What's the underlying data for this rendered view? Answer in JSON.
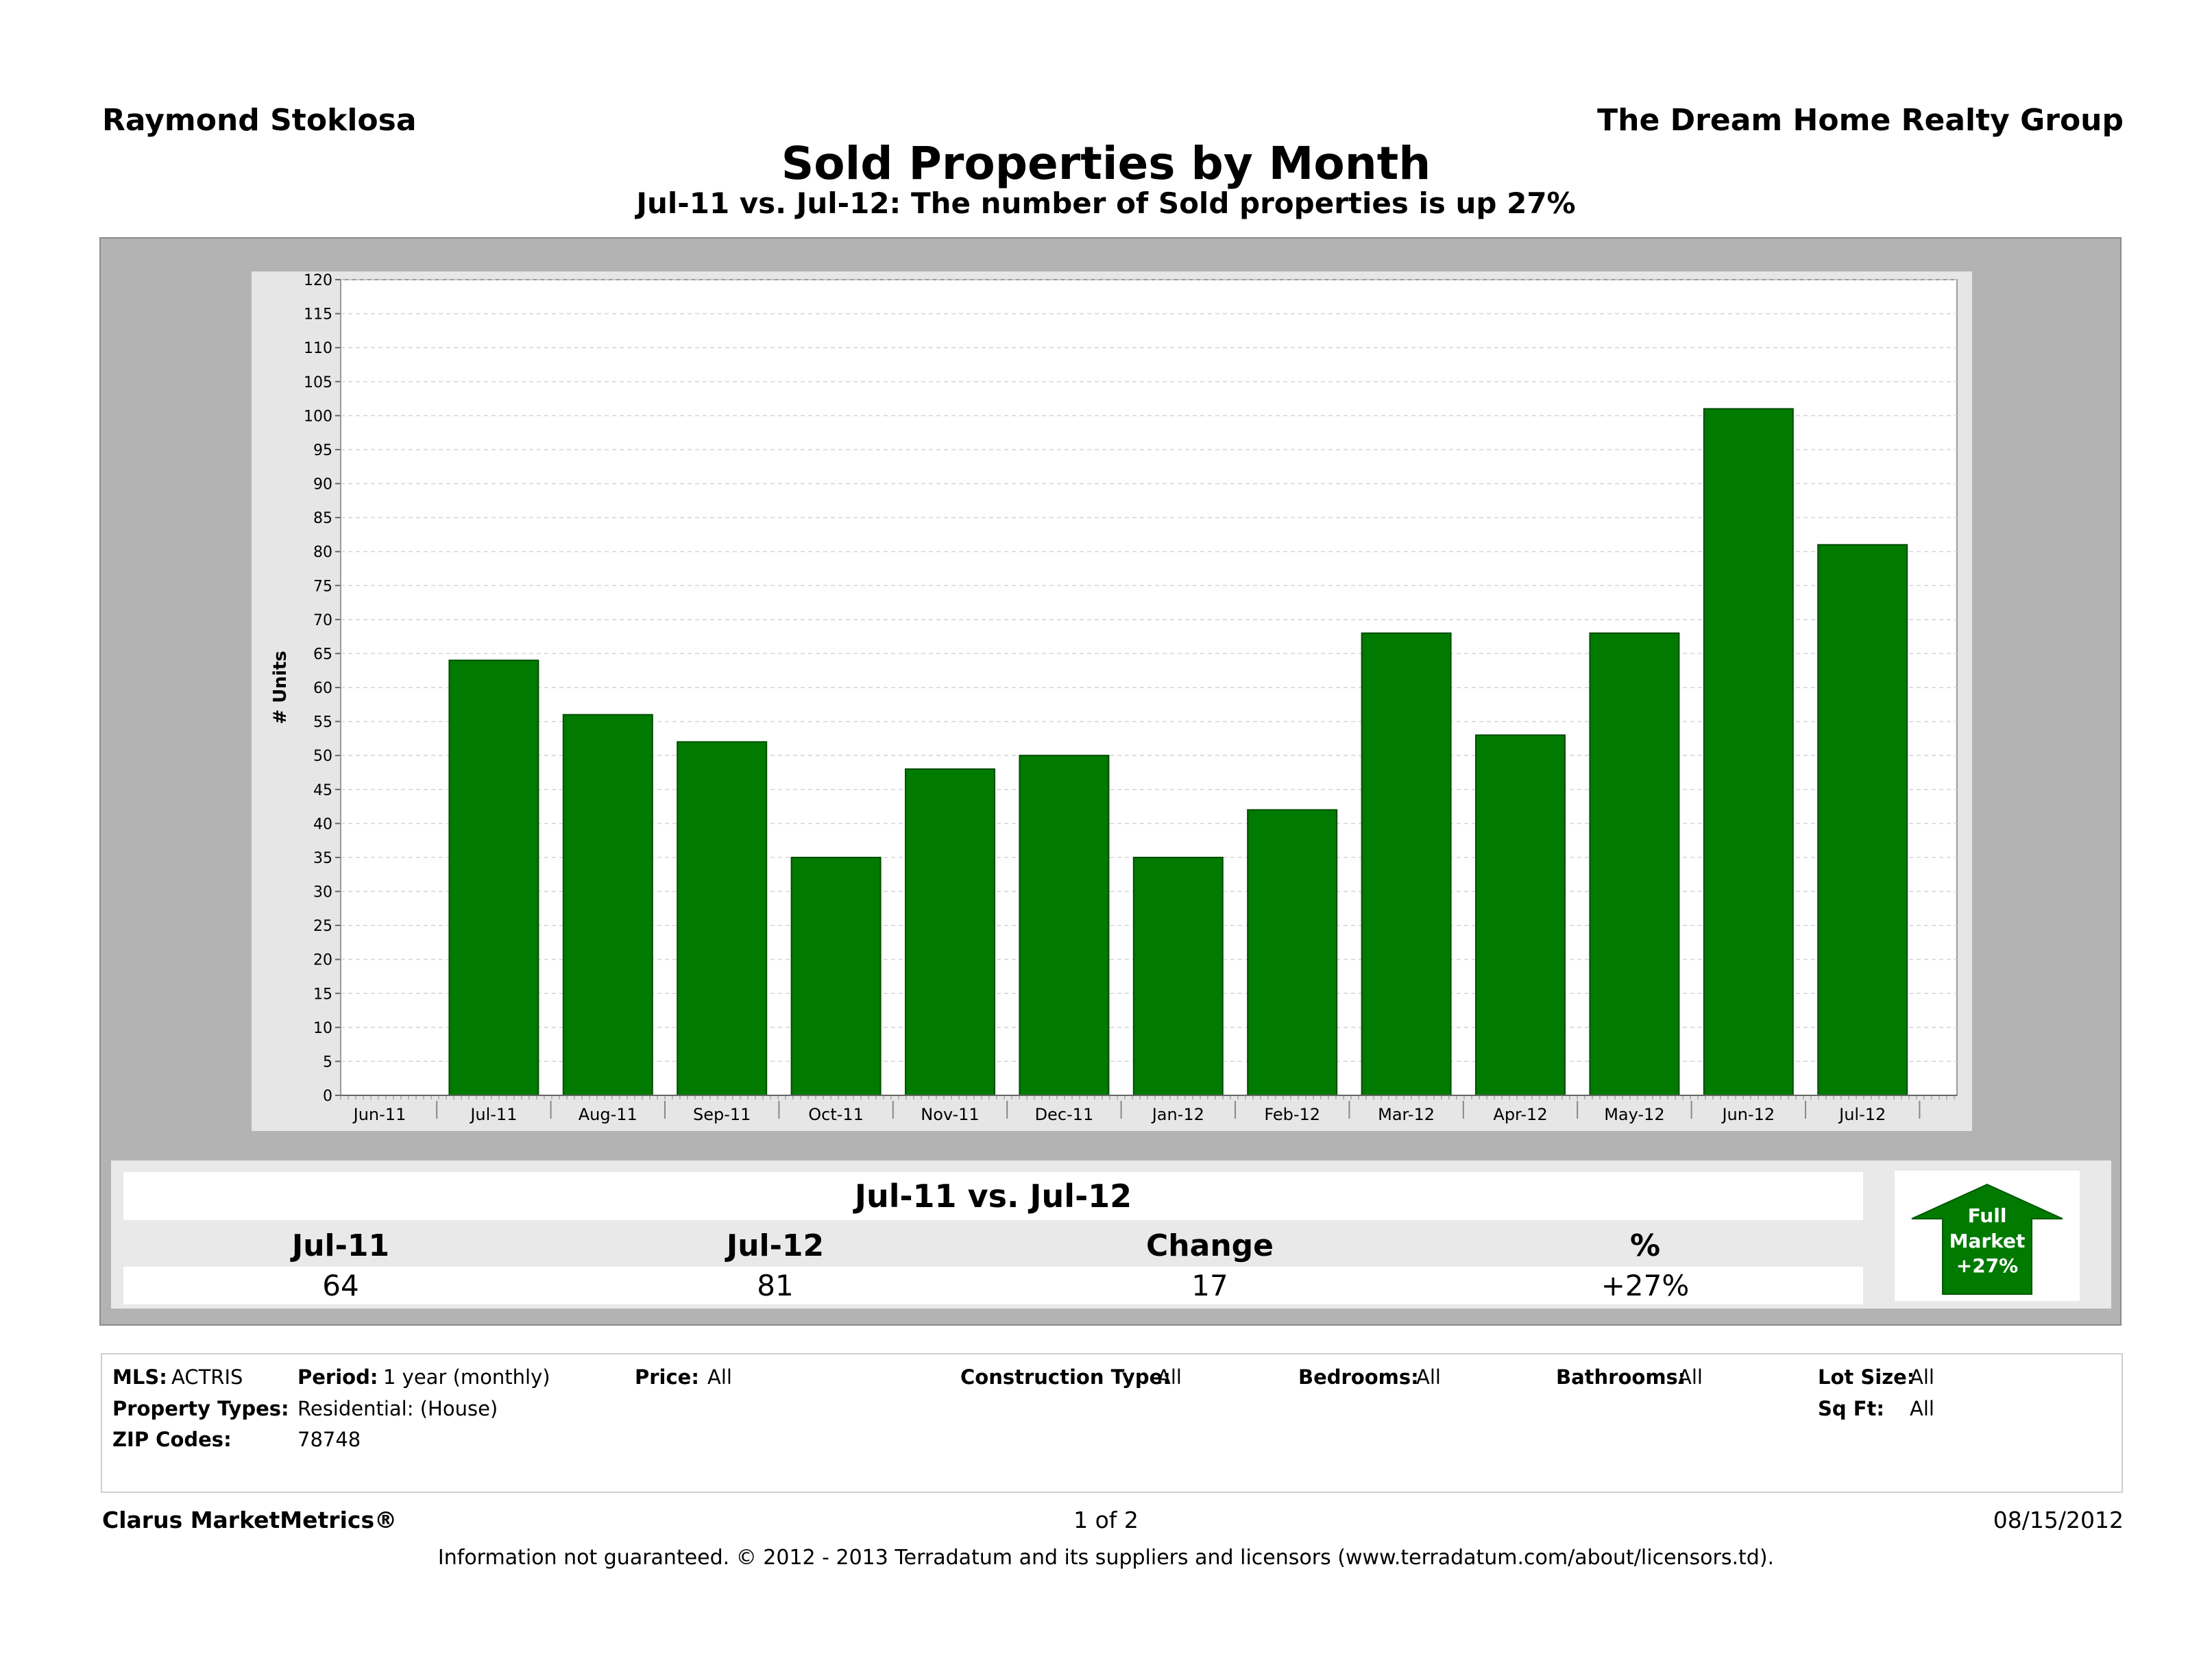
{
  "header": {
    "agent": "Raymond Stoklosa",
    "company": "The Dream Home Realty Group",
    "title": "Sold Properties by Month",
    "subtitle": "Jul-11 vs. Jul-12: The number of Sold properties is up 27%"
  },
  "chart_data": {
    "type": "bar",
    "ylabel": "# Units",
    "xlabel": "",
    "ylim": [
      0,
      120
    ],
    "ytick_step": 5,
    "grid": true,
    "bar_color": "#007a00",
    "categories": [
      "Jun-11",
      "Jul-11",
      "Aug-11",
      "Sep-11",
      "Oct-11",
      "Nov-11",
      "Dec-11",
      "Jan-12",
      "Feb-12",
      "Mar-12",
      "Apr-12",
      "May-12",
      "Jun-12",
      "Jul-12"
    ],
    "values": [
      null,
      64,
      56,
      52,
      35,
      48,
      50,
      35,
      42,
      68,
      53,
      68,
      101,
      81
    ]
  },
  "summary": {
    "heading": "Jul-11 vs. Jul-12",
    "columns": [
      {
        "label": "Jul-11",
        "value": "64"
      },
      {
        "label": "Jul-12",
        "value": "81"
      },
      {
        "label": "Change",
        "value": "17"
      },
      {
        "label": "%",
        "value": "+27%"
      }
    ],
    "badge": {
      "line1": "Full",
      "line2": "Market",
      "line3": "+27%",
      "color": "#007a00"
    }
  },
  "filters": {
    "mls_label": "MLS:",
    "mls_value": "ACTRIS",
    "period_label": "Period:",
    "period_value": "1 year (monthly)",
    "price_label": "Price:",
    "price_value": "All",
    "construction_label": "Construction Type:",
    "construction_value": "All",
    "bedrooms_label": "Bedrooms:",
    "bedrooms_value": "All",
    "bathrooms_label": "Bathrooms:",
    "bathrooms_value": "All",
    "lotsize_label": "Lot Size:",
    "lotsize_value": "All",
    "proptypes_label": "Property Types:",
    "proptypes_value": "Residential: (House)",
    "sqft_label": "Sq Ft:",
    "sqft_value": "All",
    "zip_label": "ZIP Codes:",
    "zip_value": "78748"
  },
  "footer": {
    "brand": "Clarus MarketMetrics®",
    "page": "1 of 2",
    "date": "08/15/2012",
    "disclaimer": "Information not guaranteed.  © 2012 - 2013 Terradatum and its suppliers and licensors (www.terradatum.com/about/licensors.td)."
  }
}
